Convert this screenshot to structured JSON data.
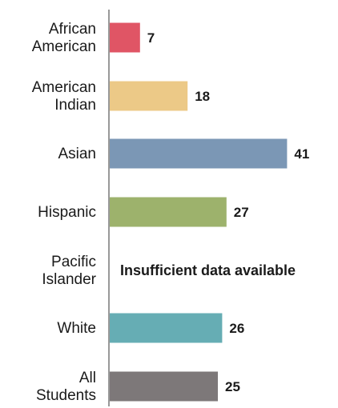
{
  "chart_data": {
    "type": "bar",
    "orientation": "horizontal",
    "categories": [
      [
        "African",
        "American"
      ],
      [
        "American",
        "Indian"
      ],
      [
        "Asian"
      ],
      [
        "Hispanic"
      ],
      [
        "Pacific",
        "Islander"
      ],
      [
        "White"
      ],
      [
        "All",
        "Students"
      ]
    ],
    "values": [
      7,
      18,
      41,
      27,
      null,
      26,
      25
    ],
    "value_labels": [
      "7",
      "18",
      "41",
      "27",
      "",
      "26",
      "25"
    ],
    "missing_note": "Insufficient data available",
    "colors": [
      "#e05565",
      "#ecc987",
      "#7b97b5",
      "#9db26c",
      "#cccccc",
      "#66adb4",
      "#7d7879"
    ],
    "axis_color": "#555555",
    "xlim": [
      0,
      41
    ],
    "grid": false,
    "legend": "none",
    "title": "",
    "xlabel": "",
    "ylabel": ""
  }
}
